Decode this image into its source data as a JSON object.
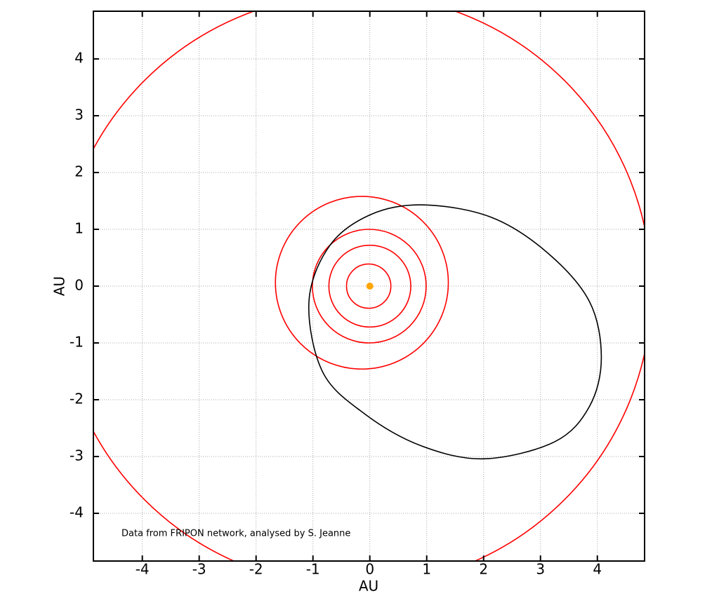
{
  "chart_data": {
    "type": "orbit",
    "xlabel": "AU",
    "ylabel": "AU",
    "annotation": "Data from FRIPON network, analysed by S. Jeanne",
    "xlim": [
      -4.86,
      4.83
    ],
    "ylim": [
      -4.84,
      4.84
    ],
    "xticks": [
      -4,
      -3,
      -2,
      -1,
      0,
      1,
      2,
      3,
      4
    ],
    "yticks": [
      -4,
      -3,
      -2,
      -1,
      0,
      1,
      2,
      3,
      4
    ],
    "grid": true,
    "circles": [
      {
        "color": "#ff0000",
        "center": [
          -0.02,
          0.0
        ],
        "radius": 0.39
      },
      {
        "color": "#ff0000",
        "center": [
          0.0,
          0.0
        ],
        "radius": 0.72
      },
      {
        "color": "#ff0000",
        "center": [
          -0.01,
          0.0
        ],
        "radius": 1.0
      },
      {
        "color": "#ff0000",
        "center": [
          -0.14,
          0.06
        ],
        "radius": 1.52
      },
      {
        "color": "#ff0000",
        "center": [
          -0.27,
          -0.07
        ],
        "radius": 5.22
      }
    ],
    "series": [
      {
        "color": "#000000",
        "x": [
          0.96,
          2.14,
          3.12,
          3.86,
          4.07,
          3.86,
          3.25,
          2.01,
          0.9,
          -0.09,
          -0.83,
          -1.07,
          -0.7,
          0.04
        ],
        "values": [
          1.43,
          1.21,
          0.59,
          -0.27,
          -1.26,
          -2.12,
          -2.74,
          -3.04,
          -2.81,
          -2.25,
          -1.51,
          -0.27,
          0.72,
          1.27
        ]
      }
    ],
    "sun": {
      "x": 0,
      "y": 0,
      "color": "#ffa500"
    }
  }
}
